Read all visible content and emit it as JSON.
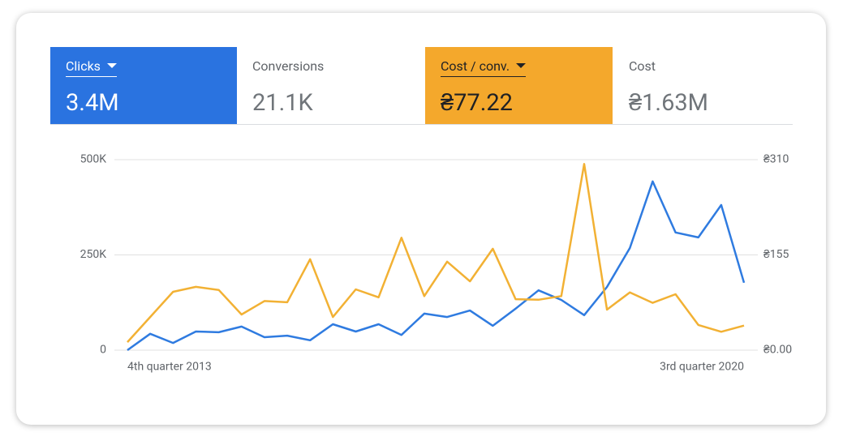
{
  "scorecards": [
    {
      "label": "Clicks",
      "value": "3.4M"
    },
    {
      "label": "Conversions",
      "value": "21.1K"
    },
    {
      "label": "Cost / conv.",
      "value": "₴77.22"
    },
    {
      "label": "Cost",
      "value": "₴1.63M"
    }
  ],
  "chart_data": {
    "type": "line",
    "categories": [
      "4th quarter 2013",
      null,
      null,
      null,
      null,
      null,
      null,
      null,
      null,
      null,
      null,
      null,
      null,
      null,
      null,
      null,
      null,
      null,
      null,
      null,
      null,
      null,
      null,
      null,
      null,
      null,
      null,
      "3rd quarter 2020"
    ],
    "series": [
      {
        "color": "#2f7be0",
        "values": [
          0,
          43000,
          19000,
          49000,
          47000,
          62000,
          34000,
          38000,
          26000,
          68000,
          49000,
          68000,
          40000,
          96000,
          87000,
          104000,
          64000,
          109000,
          157000,
          132000,
          92000,
          166000,
          268000,
          443000,
          309000,
          296000,
          381000,
          177000
        ]
      },
      {
        "color": "#f2b134",
        "axis": "y2",
        "values": [
          13,
          54,
          95,
          103,
          98,
          58,
          80,
          78,
          148,
          54,
          99,
          86,
          183,
          88,
          144,
          112,
          165,
          83,
          82,
          88,
          303,
          66,
          94,
          77,
          91,
          41,
          30,
          40
        ]
      }
    ],
    "ylim": [
      0,
      500000
    ],
    "yticks": [
      0,
      {
        "value": 250000,
        "label": "250K"
      },
      {
        "value": 500000,
        "label": "500K"
      }
    ],
    "y2lim": [
      0,
      310
    ],
    "y2ticks": [
      {
        "value": 0,
        "label": "₴0.00"
      },
      {
        "value": 155,
        "label": "₴155"
      },
      {
        "value": 310,
        "label": "₴310"
      }
    ],
    "grid": true
  }
}
